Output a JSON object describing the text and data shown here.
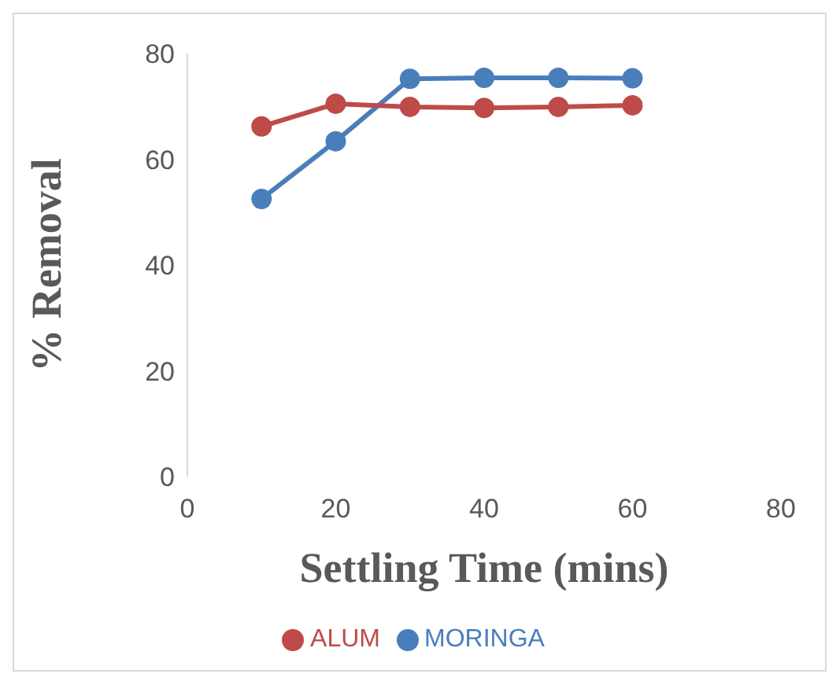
{
  "chart_data": {
    "type": "line",
    "xlabel": "Settling Time (mins)",
    "ylabel": "% Removal",
    "x": [
      10,
      20,
      30,
      40,
      50,
      60
    ],
    "series": [
      {
        "name": "MORINGA",
        "color": "#4a7ebb",
        "values": [
          52.5,
          63.4,
          75.2,
          75.4,
          75.4,
          75.3
        ]
      },
      {
        "name": "ALUM",
        "color": "#be4b48",
        "values": [
          66.2,
          70.5,
          69.9,
          69.7,
          69.9,
          70.2
        ]
      }
    ],
    "xlim": [
      0,
      80
    ],
    "xticks": [
      0,
      20,
      40,
      60,
      80
    ],
    "ylim": [
      0,
      80
    ],
    "yticks": [
      0,
      20,
      40,
      60,
      80
    ],
    "grid": false,
    "legend": "bottom",
    "marker": "circle",
    "line_style": "solid"
  }
}
